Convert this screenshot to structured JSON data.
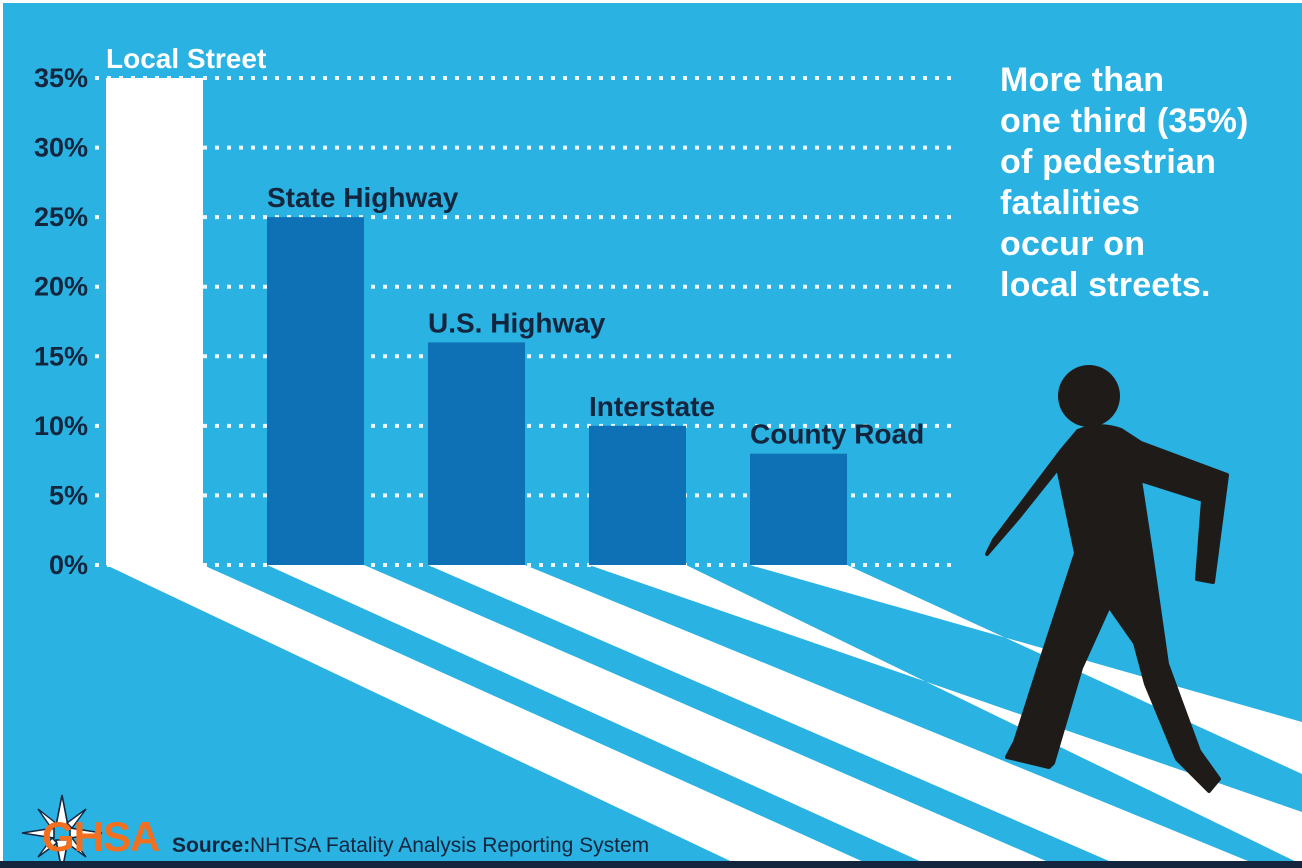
{
  "title": "Pedestrian fatalities by road type infographic",
  "colors": {
    "background": "#29B2E2",
    "bar_blue": "#0E71B5",
    "navy_text": "#14253E",
    "orange": "#F26F1F",
    "white": "#FFFFFF",
    "silhouette": "#1E1B19"
  },
  "chart_data": {
    "type": "bar",
    "categories": [
      "Local Street",
      "State Highway",
      "U.S. Highway",
      "Interstate",
      "County Road"
    ],
    "values": [
      35,
      25,
      16,
      10,
      8
    ],
    "bar_colors": [
      "#FFFFFF",
      "#0E71B5",
      "#0E71B5",
      "#0E71B5",
      "#0E71B5"
    ],
    "label_colors": [
      "#FFFFFF",
      "#14253E",
      "#14253E",
      "#14253E",
      "#14253E"
    ],
    "yticks": [
      35,
      30,
      25,
      20,
      15,
      10,
      5,
      0
    ],
    "ytick_labels": [
      "35%",
      "30%",
      "25%",
      "20%",
      "15%",
      "10%",
      "5%",
      "0%"
    ],
    "ylim": [
      0,
      35
    ],
    "grid": "horizontal white dotted lines",
    "legend": "none",
    "xlabel": "",
    "ylabel": ""
  },
  "annotation": {
    "text": "More than\none third (35%)\nof pedestrian\nfatalities\noccur on\nlocal streets."
  },
  "source": {
    "label": "Source:",
    "text": "NHTSA Fatality Analysis Reporting System"
  },
  "logo": {
    "text": "GHSA"
  }
}
